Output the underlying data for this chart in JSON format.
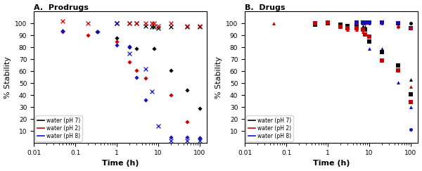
{
  "title_A": "A.  Prodrugs",
  "title_B": "B.  Drugs",
  "xlabel": "Time (h)",
  "ylabel": "% Stability",
  "xlim": [
    0.01,
    150
  ],
  "ylim": [
    0,
    110
  ],
  "yticks": [
    10,
    20,
    30,
    40,
    50,
    60,
    70,
    80,
    90,
    100
  ],
  "prodrug_VX765_black": {
    "x": [
      0.05,
      0.33,
      1.0,
      2.0,
      3.0,
      8.0,
      20.0,
      50.0,
      100.0
    ],
    "y": [
      94,
      93,
      88,
      80,
      79,
      79,
      61,
      44,
      29
    ],
    "color": "black",
    "marker": "D"
  },
  "prodrug_VX765_red": {
    "x": [
      0.05,
      0.2,
      1.0,
      2.0,
      3.0,
      5.0,
      20.0,
      50.0,
      100.0
    ],
    "y": [
      93,
      90,
      85,
      68,
      61,
      54,
      40,
      18,
      4
    ],
    "color": "red",
    "marker": "D"
  },
  "prodrug_VX765_blue": {
    "x": [
      0.05,
      0.35,
      1.0,
      2.0,
      3.0,
      5.0,
      20.0,
      50.0,
      100.0
    ],
    "y": [
      94,
      93,
      82,
      81,
      55,
      36,
      5,
      5,
      4
    ],
    "color": "blue",
    "marker": "D"
  },
  "prodrug_NCGC_black": {
    "x": [
      1.0,
      2.0,
      3.0,
      5.0,
      7.0,
      8.0,
      10.0,
      20.0,
      50.0,
      100.0
    ],
    "y": [
      100,
      100,
      100,
      98,
      97,
      97,
      96,
      97,
      97,
      97
    ],
    "color": "black",
    "marker": "x"
  },
  "prodrug_NCGC_red": {
    "x": [
      0.05,
      0.2,
      1.0,
      2.0,
      3.0,
      5.0,
      7.0,
      8.0,
      10.0,
      20.0,
      50.0,
      100.0
    ],
    "y": [
      102,
      100,
      100,
      100,
      100,
      100,
      100,
      100,
      98,
      100,
      98,
      98
    ],
    "color": "red",
    "marker": "x"
  },
  "prodrug_NCGC_blue": {
    "x": [
      1.0,
      2.0,
      5.0,
      7.0,
      10.0,
      20.0,
      50.0,
      100.0
    ],
    "y": [
      100,
      75,
      62,
      43,
      14,
      2,
      2,
      2
    ],
    "color": "blue",
    "marker": "x"
  },
  "drug_VRT_black": {
    "x": [
      5.0,
      7.0,
      8.0,
      10.0,
      20.0,
      50.0,
      100.0
    ],
    "y": [
      100,
      98,
      97,
      85,
      76,
      65,
      53
    ],
    "color": "black",
    "marker": "^"
  },
  "drug_VRT_red": {
    "x": [
      0.05,
      0.5,
      1.0,
      2.0,
      3.0,
      5.0,
      7.0,
      8.0,
      10.0,
      20.0,
      50.0,
      100.0
    ],
    "y": [
      100,
      101,
      100,
      97,
      95,
      95,
      93,
      91,
      89,
      69,
      61,
      47
    ],
    "color": "red",
    "marker": "^"
  },
  "drug_VRT_blue": {
    "x": [
      5.0,
      7.0,
      10.0,
      20.0,
      50.0,
      100.0
    ],
    "y": [
      101,
      100,
      79,
      79,
      51,
      30
    ],
    "color": "blue",
    "marker": "^"
  },
  "drug_NCGC183434_black": {
    "x": [
      0.5,
      1.0,
      2.0,
      3.0,
      5.0,
      7.0,
      8.0,
      10.0,
      20.0,
      50.0,
      100.0
    ],
    "y": [
      99,
      100,
      99,
      98,
      97,
      95,
      95,
      85,
      76,
      65,
      41
    ],
    "color": "black",
    "marker": "s"
  },
  "drug_NCGC183434_red": {
    "x": [
      0.5,
      1.0,
      2.0,
      3.0,
      5.0,
      7.0,
      8.0,
      10.0,
      20.0,
      50.0,
      100.0
    ],
    "y": [
      100,
      101,
      97,
      96,
      96,
      95,
      91,
      89,
      69,
      61,
      34
    ],
    "color": "red",
    "marker": "s"
  },
  "drug_NCGC183434_blue": {
    "x": [
      5.0,
      7.0,
      8.0,
      10.0,
      20.0,
      50.0,
      100.0
    ],
    "y": [
      101,
      101,
      101,
      101,
      101,
      100,
      96
    ],
    "color": "blue",
    "marker": "s"
  },
  "drug_NCGC183681_black": {
    "x": [
      5.0,
      7.0,
      8.0,
      10.0,
      20.0,
      50.0,
      100.0
    ],
    "y": [
      100,
      101,
      101,
      101,
      101,
      100,
      100
    ],
    "color": "black",
    "marker": "o"
  },
  "drug_NCGC183681_red": {
    "x": [
      5.0,
      7.0,
      8.0,
      10.0,
      20.0,
      50.0,
      100.0
    ],
    "y": [
      100,
      100,
      100,
      100,
      100,
      97,
      96
    ],
    "color": "red",
    "marker": "o"
  },
  "drug_NCGC183681_blue": {
    "x": [
      5.0,
      7.0,
      8.0,
      10.0,
      20.0,
      50.0,
      100.0
    ],
    "y": [
      101,
      101,
      101,
      101,
      101,
      101,
      11
    ],
    "color": "blue",
    "marker": "o"
  },
  "legend_entries": [
    {
      "label": "water (pH 7)",
      "color": "black"
    },
    {
      "label": "water (pH 2)",
      "color": "red"
    },
    {
      "label": "water (pH 8)",
      "color": "blue"
    }
  ],
  "colors": {
    "black": "#000000",
    "red": "#cc0000",
    "blue": "#1111cc"
  }
}
